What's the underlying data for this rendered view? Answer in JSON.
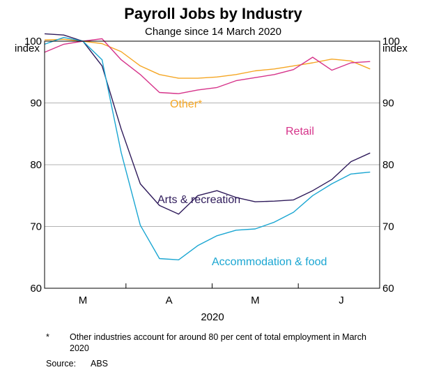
{
  "chart_data": {
    "type": "line",
    "title": "Payroll Jobs by Industry",
    "subtitle": "Change since 14 March 2020",
    "ylabel_left": "index",
    "ylabel_right": "index",
    "xlabel": "2020",
    "ylim": [
      60,
      100
    ],
    "y_ticks": [
      60,
      70,
      80,
      90,
      100
    ],
    "x_ticks": [
      {
        "label": "M",
        "x": 2
      },
      {
        "label": "A",
        "x": 6.5
      },
      {
        "label": "M",
        "x": 11
      },
      {
        "label": "J",
        "x": 15.5
      }
    ],
    "x_range": [
      0,
      17.5
    ],
    "reference_line": 100,
    "grid": "horizontal",
    "x": [
      0,
      1,
      2,
      3,
      4,
      5,
      6,
      7,
      8,
      9,
      10,
      11,
      12,
      13,
      14,
      15,
      16,
      17
    ],
    "series": [
      {
        "name": "Other*",
        "color": "#f5a623",
        "values": [
          100.2,
          100.3,
          100.0,
          99.6,
          98.3,
          96.0,
          94.6,
          94.0,
          94.0,
          94.2,
          94.6,
          95.2,
          95.5,
          96.0,
          96.5,
          97.1,
          96.8,
          95.5
        ]
      },
      {
        "name": "Retail",
        "color": "#d6338a",
        "values": [
          98.2,
          99.5,
          100.0,
          100.4,
          97.0,
          94.6,
          91.7,
          91.5,
          92.1,
          92.5,
          93.6,
          94.1,
          94.6,
          95.4,
          97.4,
          95.3,
          96.5,
          96.7
        ]
      },
      {
        "name": "Arts & recreation",
        "color": "#2e1a5a",
        "values": [
          101.2,
          101.0,
          100.0,
          96.0,
          85.8,
          76.9,
          73.4,
          72.0,
          75.0,
          75.8,
          74.7,
          74.0,
          74.1,
          74.3,
          75.8,
          77.6,
          80.5,
          81.9
        ]
      },
      {
        "name": "Accommodation & food",
        "color": "#1aa6d2",
        "values": [
          99.5,
          100.6,
          100.0,
          97.0,
          82.0,
          70.2,
          64.8,
          64.6,
          66.9,
          68.5,
          69.4,
          69.6,
          70.7,
          72.3,
          75.0,
          76.9,
          78.5,
          78.8
        ]
      }
    ],
    "footnote_marker": "*",
    "footnote": "Other industries account for around 80 per cent of total employment in March 2020",
    "source_label": "Source:",
    "source": "ABS"
  }
}
